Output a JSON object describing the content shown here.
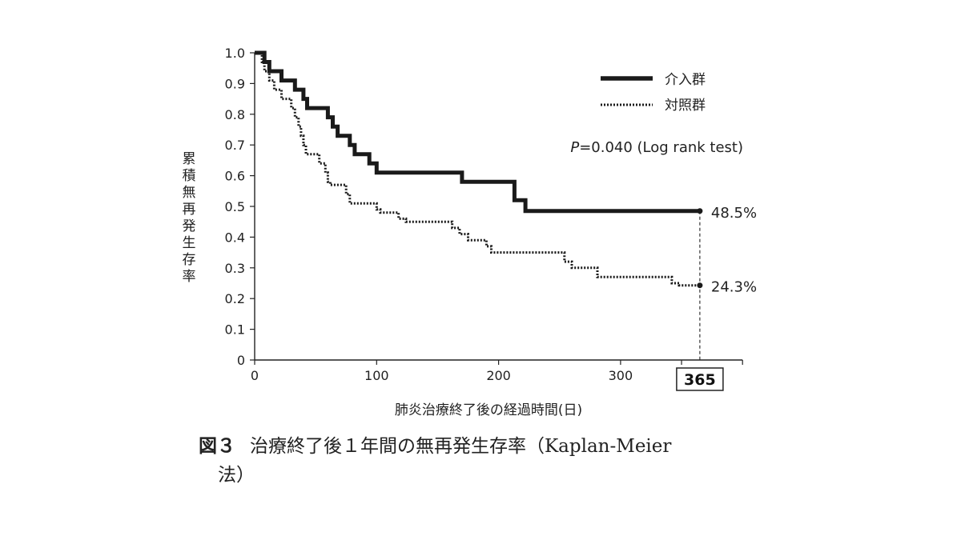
{
  "chart_data": {
    "type": "line",
    "subtype": "kaplan-meier step curve",
    "ylabel": "累積無再発生存率",
    "xlabel": "肺炎治療終了後の経過時間(日)",
    "xlim": [
      0,
      400
    ],
    "ylim": [
      0,
      1.0
    ],
    "x_ticks": [
      0,
      100,
      200,
      300
    ],
    "y_ticks": [
      0,
      0.1,
      0.2,
      0.3,
      0.4,
      0.5,
      0.6,
      0.7,
      0.8,
      0.9,
      1.0
    ],
    "y_tick_labels": [
      "0",
      "0.1",
      "0.2",
      "0.3",
      "0.4",
      "0.5",
      "0.6",
      "0.7",
      "0.8",
      "0.9",
      "1.0"
    ],
    "x_tick_labels": [
      "0",
      "100",
      "200",
      "300"
    ],
    "highlight_x": 365,
    "highlight_label": "365",
    "annotation": {
      "p_symbol": "P",
      "p_text": "=0.040 (Log rank test)"
    },
    "legend_position": "top-right",
    "series": [
      {
        "name": "介入群",
        "style": "solid",
        "color": "#1a1a1a",
        "end_label": "48.5%",
        "end_value": 0.485,
        "points": [
          [
            0,
            1.0
          ],
          [
            8,
            1.0
          ],
          [
            8,
            0.97
          ],
          [
            12,
            0.97
          ],
          [
            12,
            0.94
          ],
          [
            22,
            0.94
          ],
          [
            22,
            0.91
          ],
          [
            33,
            0.91
          ],
          [
            33,
            0.88
          ],
          [
            40,
            0.88
          ],
          [
            40,
            0.85
          ],
          [
            43,
            0.85
          ],
          [
            43,
            0.82
          ],
          [
            60,
            0.82
          ],
          [
            60,
            0.79
          ],
          [
            64,
            0.79
          ],
          [
            64,
            0.76
          ],
          [
            68,
            0.76
          ],
          [
            68,
            0.73
          ],
          [
            78,
            0.73
          ],
          [
            78,
            0.7
          ],
          [
            82,
            0.7
          ],
          [
            82,
            0.67
          ],
          [
            94,
            0.67
          ],
          [
            94,
            0.64
          ],
          [
            100,
            0.64
          ],
          [
            100,
            0.61
          ],
          [
            170,
            0.61
          ],
          [
            170,
            0.58
          ],
          [
            213,
            0.58
          ],
          [
            213,
            0.52
          ],
          [
            222,
            0.52
          ],
          [
            222,
            0.485
          ],
          [
            365,
            0.485
          ]
        ]
      },
      {
        "name": "対照群",
        "style": "dotted",
        "color": "#1a1a1a",
        "end_label": "24.3%",
        "end_value": 0.243,
        "points": [
          [
            0,
            1.0
          ],
          [
            6,
            1.0
          ],
          [
            6,
            0.97
          ],
          [
            8,
            0.97
          ],
          [
            8,
            0.94
          ],
          [
            12,
            0.94
          ],
          [
            12,
            0.91
          ],
          [
            16,
            0.91
          ],
          [
            16,
            0.88
          ],
          [
            22,
            0.88
          ],
          [
            22,
            0.85
          ],
          [
            30,
            0.85
          ],
          [
            30,
            0.82
          ],
          [
            33,
            0.82
          ],
          [
            33,
            0.79
          ],
          [
            36,
            0.79
          ],
          [
            36,
            0.76
          ],
          [
            38,
            0.76
          ],
          [
            38,
            0.73
          ],
          [
            40,
            0.73
          ],
          [
            40,
            0.7
          ],
          [
            42,
            0.7
          ],
          [
            42,
            0.67
          ],
          [
            53,
            0.67
          ],
          [
            53,
            0.64
          ],
          [
            58,
            0.64
          ],
          [
            58,
            0.61
          ],
          [
            60,
            0.61
          ],
          [
            60,
            0.58
          ],
          [
            62,
            0.58
          ],
          [
            62,
            0.57
          ],
          [
            75,
            0.57
          ],
          [
            75,
            0.54
          ],
          [
            78,
            0.54
          ],
          [
            78,
            0.51
          ],
          [
            100,
            0.51
          ],
          [
            100,
            0.49
          ],
          [
            103,
            0.49
          ],
          [
            103,
            0.48
          ],
          [
            118,
            0.48
          ],
          [
            118,
            0.46
          ],
          [
            124,
            0.46
          ],
          [
            124,
            0.45
          ],
          [
            162,
            0.45
          ],
          [
            162,
            0.43
          ],
          [
            168,
            0.43
          ],
          [
            168,
            0.41
          ],
          [
            175,
            0.41
          ],
          [
            175,
            0.39
          ],
          [
            190,
            0.39
          ],
          [
            190,
            0.37
          ],
          [
            194,
            0.37
          ],
          [
            194,
            0.35
          ],
          [
            254,
            0.35
          ],
          [
            254,
            0.32
          ],
          [
            260,
            0.32
          ],
          [
            260,
            0.3
          ],
          [
            281,
            0.3
          ],
          [
            281,
            0.27
          ],
          [
            342,
            0.27
          ],
          [
            342,
            0.25
          ],
          [
            348,
            0.25
          ],
          [
            348,
            0.243
          ],
          [
            365,
            0.243
          ]
        ]
      }
    ]
  },
  "caption": {
    "fig_label": "図３",
    "text_line1": "治療終了後１年間の無再発生存率（Kaplan-Meier",
    "text_line2": "法）"
  }
}
